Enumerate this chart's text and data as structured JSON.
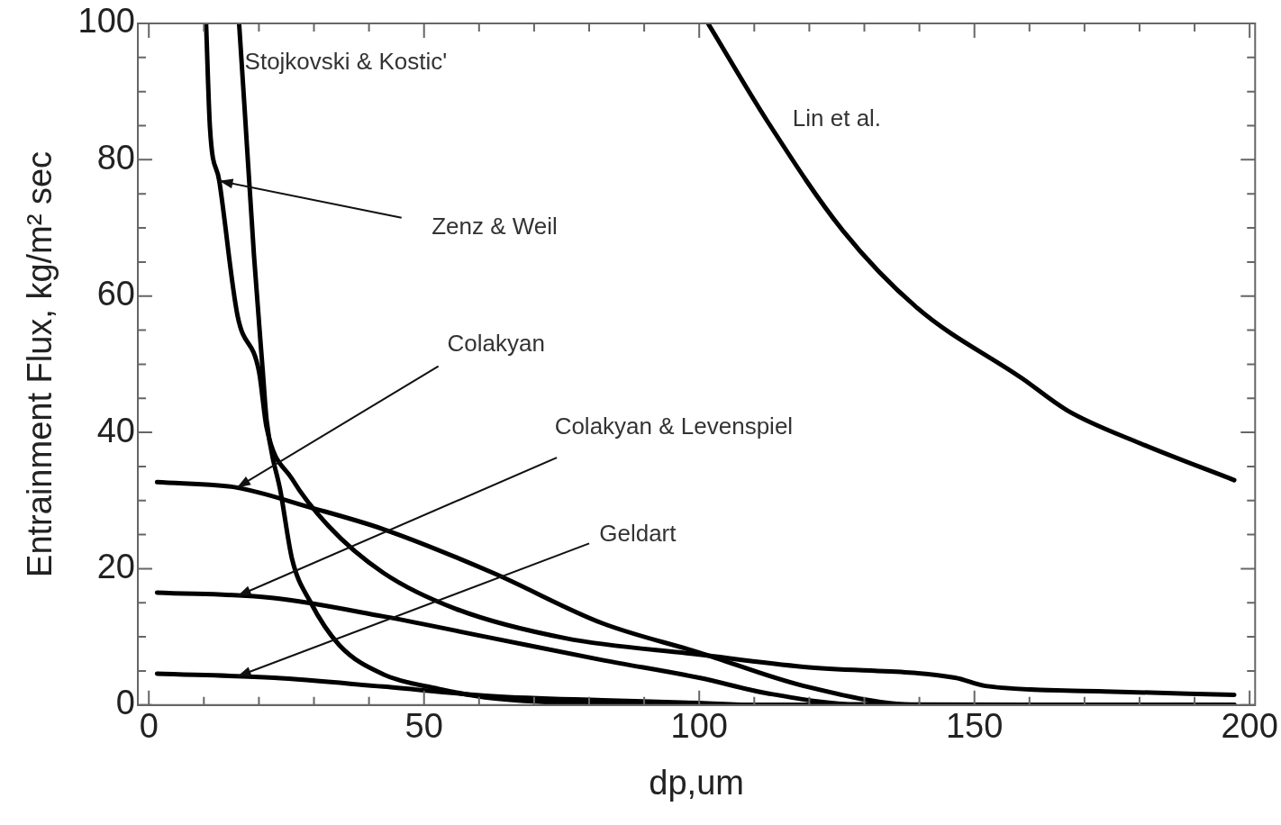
{
  "chart_data": {
    "type": "line",
    "xlabel": "dp,um",
    "ylabel": "Entrainment Flux, kg/m² sec",
    "xlim": [
      -2,
      201
    ],
    "ylim": [
      0,
      100
    ],
    "xticks": [
      0,
      {
        "value": 10,
        "label": null
      },
      {
        "value": 20,
        "label": null
      },
      {
        "value": 30,
        "label": null
      },
      {
        "value": 40,
        "label": null
      },
      50,
      {
        "value": 60,
        "label": null
      },
      {
        "value": 70,
        "label": null
      },
      {
        "value": 80,
        "label": null
      },
      {
        "value": 90,
        "label": null
      },
      100,
      {
        "value": 110,
        "label": null
      },
      {
        "value": 120,
        "label": null
      },
      {
        "value": 130,
        "label": null
      },
      {
        "value": 140,
        "label": null
      },
      150,
      {
        "value": 160,
        "label": null
      },
      {
        "value": 170,
        "label": null
      },
      {
        "value": 180,
        "label": null
      },
      {
        "value": 190,
        "label": null
      },
      200
    ],
    "yticks": [
      0,
      {
        "value": 5,
        "label": null
      },
      {
        "value": 10,
        "label": null
      },
      {
        "value": 15,
        "label": null
      },
      20,
      {
        "value": 25,
        "label": null
      },
      {
        "value": 30,
        "label": null
      },
      {
        "value": 35,
        "label": null
      },
      40,
      {
        "value": 45,
        "label": null
      },
      {
        "value": 50,
        "label": null
      },
      {
        "value": 55,
        "label": null
      },
      60,
      {
        "value": 65,
        "label": null
      },
      {
        "value": 70,
        "label": null
      },
      {
        "value": 75,
        "label": null
      },
      80,
      {
        "value": 85,
        "label": null
      },
      {
        "value": 90,
        "label": null
      },
      {
        "value": 95,
        "label": null
      },
      100
    ],
    "grid": false,
    "legend": false,
    "marker": "none",
    "line_style": "solid",
    "series": [
      {
        "color": "#000000",
        "x": [
          16.4,
          17.4,
          19.1,
          20.7,
          21.4,
          24,
          26,
          29.3,
          34.6,
          42.6,
          52.5,
          62.5,
          80,
          100,
          150,
          197.2
        ],
        "values": [
          100,
          87.5,
          66,
          49,
          41.8,
          31,
          21.5,
          15.2,
          8.8,
          4.5,
          2.4,
          1,
          0.2,
          0,
          0,
          0
        ]
      },
      {
        "color": "#000000",
        "x": [
          10.4,
          11.1,
          12.8,
          16.1,
          20,
          21.4,
          26,
          32.6,
          42.6,
          55.8,
          75.7,
          100,
          119,
          146.5,
          152,
          173.7,
          197.2
        ],
        "values": [
          100,
          84.8,
          76.9,
          57.2,
          49,
          40.7,
          33.2,
          26.3,
          19.4,
          14.1,
          9.8,
          7.4,
          5.6,
          4,
          2.8,
          2,
          1.5
        ]
      },
      {
        "color": "#000000",
        "x": [
          1.5,
          16,
          29.3,
          42.6,
          62.5,
          82.4,
          100,
          119,
          140,
          197.2
        ],
        "values": [
          32.7,
          31.9,
          29,
          25.8,
          19.4,
          12,
          7.7,
          2.8,
          0,
          0
        ]
      },
      {
        "color": "#000000",
        "x": [
          1.5,
          22.7,
          42.6,
          62.5,
          82.4,
          100,
          112.5,
          129,
          197.2
        ],
        "values": [
          16.5,
          15.7,
          13,
          9.8,
          6.6,
          4,
          1.7,
          0.1,
          0
        ]
      },
      {
        "color": "#000000",
        "x": [
          1.5,
          22.7,
          42.6,
          62.5,
          82.4,
          100,
          110,
          197.2
        ],
        "values": [
          4.6,
          4,
          2.7,
          1.3,
          0.7,
          0.3,
          0,
          0
        ]
      },
      {
        "color": "#000000",
        "x": [
          101.6,
          112.5,
          126,
          139.7,
          158.7,
          166.9,
          180.4,
          197.2
        ],
        "values": [
          100,
          85.5,
          69.7,
          58.2,
          47.9,
          43.2,
          38.3,
          33
        ]
      }
    ],
    "annotations": [
      "Stojkovski & Kostic'",
      {
        "text": "Zenz & Weil",
        "x": 12.8,
        "y": 76.9
      },
      {
        "text": "Colakyan",
        "x": 16,
        "y": 31.9
      },
      {
        "text": "Colakyan & Levenspiel",
        "x": 16.1,
        "y": 16
      },
      {
        "text": "Geldart",
        "x": 16.1,
        "y": 4.2
      },
      "Lin et al."
    ]
  }
}
